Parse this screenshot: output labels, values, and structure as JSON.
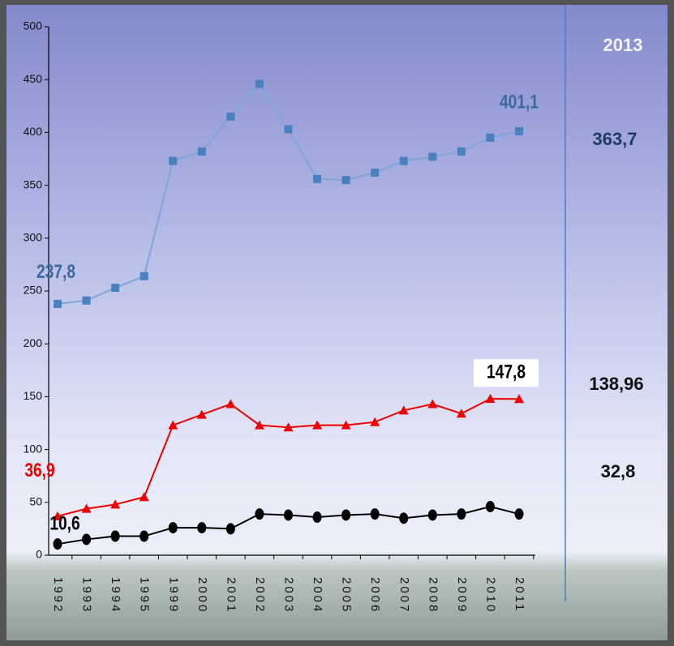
{
  "chart_data": {
    "type": "line",
    "categories": [
      "1992",
      "1993",
      "1994",
      "1995",
      "1999",
      "2000",
      "2001",
      "2002",
      "2003",
      "2004",
      "2005",
      "2006",
      "2007",
      "2008",
      "2009",
      "2010",
      "2011"
    ],
    "ylim": [
      0,
      500
    ],
    "yticks": [
      0,
      50,
      100,
      150,
      200,
      250,
      300,
      350,
      400,
      450,
      500
    ],
    "grid": false,
    "series": [
      {
        "color": "#4a7fc0",
        "marker": "square",
        "values": [
          237.8,
          241,
          253,
          264,
          373,
          382,
          415,
          446,
          403,
          356,
          355,
          362,
          373,
          377,
          382,
          395,
          401.1
        ],
        "value_labels": [
          "237,8",
          null,
          null,
          null,
          null,
          null,
          null,
          null,
          null,
          null,
          null,
          null,
          null,
          null,
          null,
          null,
          "401,1"
        ]
      },
      {
        "color": "#ee0000",
        "marker": "triangle",
        "values": [
          36.9,
          44,
          48,
          55,
          123,
          133,
          143,
          123,
          121,
          123,
          123,
          126,
          137,
          143,
          134,
          148,
          147.8
        ],
        "value_labels": [
          "36,9",
          null,
          null,
          null,
          null,
          null,
          null,
          null,
          null,
          null,
          null,
          null,
          null,
          null,
          null,
          null,
          "147,8"
        ]
      },
      {
        "color": "#000000",
        "marker": "circle",
        "values": [
          10.6,
          15,
          18,
          18,
          26,
          26,
          25,
          39,
          38,
          36,
          38,
          39,
          35,
          38,
          39,
          46,
          39
        ],
        "value_labels": [
          "10,6",
          null,
          null,
          null,
          null,
          null,
          null,
          null,
          null,
          null,
          null,
          null,
          null,
          null,
          null,
          null,
          null
        ]
      }
    ],
    "side_title": "2013",
    "side_values": [
      "363,7",
      "138,96",
      "32,8"
    ]
  }
}
